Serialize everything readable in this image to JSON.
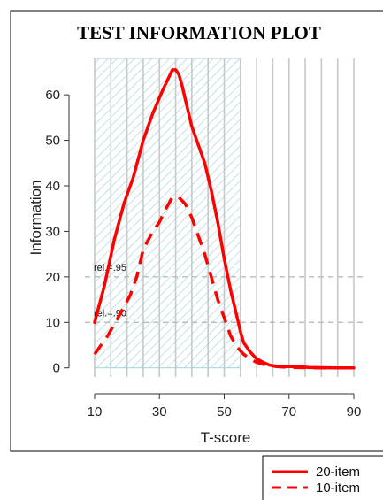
{
  "chart_data": {
    "type": "line",
    "title": "TEST INFORMATION PLOT",
    "xlabel": "T-score",
    "ylabel": "Information",
    "xlim": [
      7,
      93
    ],
    "ylim": [
      -2,
      68
    ],
    "x_ticks": [
      10,
      30,
      50,
      70,
      90
    ],
    "x_tick_labels": [
      "10",
      "30",
      "50",
      "70",
      "90"
    ],
    "y_ticks": [
      0,
      10,
      20,
      30,
      40,
      50,
      60
    ],
    "y_tick_labels": [
      "0",
      "10",
      "20",
      "30",
      "40",
      "50",
      "60"
    ],
    "x_gridlines": [
      10,
      15,
      20,
      25,
      30,
      35,
      40,
      45,
      50,
      55,
      60,
      65,
      70,
      75,
      80,
      85,
      90
    ],
    "grid": true,
    "shaded_region": {
      "x": [
        10,
        55
      ],
      "y": [
        0,
        68
      ]
    },
    "reference_lines": [
      {
        "y": 20,
        "label": "rel.=.95"
      },
      {
        "y": 10,
        "label": "rel.=.90"
      }
    ],
    "legend": {
      "position": "bottom-right"
    },
    "series": [
      {
        "name": "20-item",
        "color": "#ff0000",
        "dash": "solid",
        "x": [
          10,
          13,
          16,
          19,
          22,
          25,
          28,
          31,
          33,
          34,
          35,
          36,
          37,
          38,
          40,
          42,
          44,
          46,
          48,
          50,
          52,
          54,
          55,
          56,
          58,
          60,
          62,
          64,
          66,
          68,
          70,
          73,
          76,
          80,
          85,
          90
        ],
        "y": [
          10,
          18,
          28,
          36,
          42,
          50,
          56,
          61,
          64,
          65.5,
          65.5,
          64.5,
          62,
          59,
          53,
          49,
          45,
          39,
          32,
          24,
          17,
          11,
          8,
          5.5,
          3.5,
          2,
          1.2,
          0.6,
          0.4,
          0.3,
          0.3,
          0.3,
          0.1,
          0.05,
          0,
          0
        ]
      },
      {
        "name": "10-item",
        "color": "#ff0000",
        "dash": "dashed",
        "x": [
          10,
          14,
          18,
          21,
          23,
          25,
          28,
          30,
          32,
          34,
          36,
          38,
          40,
          42,
          44,
          46,
          48,
          50,
          52,
          54,
          56,
          58,
          60,
          62,
          64,
          66,
          70,
          75,
          80,
          90
        ],
        "y": [
          3,
          7,
          12,
          16,
          20,
          26,
          30,
          32,
          35,
          37.5,
          37.5,
          36,
          33,
          29,
          25,
          20,
          15,
          11,
          7,
          4.5,
          3,
          2,
          1.2,
          0.8,
          0.5,
          0.3,
          0.1,
          0.05,
          0,
          0
        ]
      }
    ]
  }
}
